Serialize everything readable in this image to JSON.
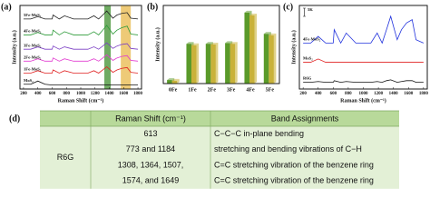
{
  "chart_data": [
    {
      "type": "line",
      "panel_label": "(a)",
      "x_label": "Raman Shift (cm⁻¹)",
      "y_label": "Intensity (a.u.)",
      "x": [
        200,
        300,
        400,
        500,
        600,
        613,
        700,
        773,
        900,
        1000,
        1100,
        1184,
        1250,
        1308,
        1364,
        1450,
        1507,
        1574,
        1649,
        1700,
        1800
      ],
      "xlim": [
        150,
        1850
      ],
      "xticks": [
        200,
        400,
        600,
        800,
        1000,
        1200,
        1400,
        1600,
        1800
      ],
      "ylim": [
        0,
        10.5
      ],
      "highlights": [
        {
          "range": [
            1330,
            1420
          ],
          "color": "#3f8f2f"
        },
        {
          "range": [
            1560,
            1700
          ],
          "color": "#e8b84a"
        }
      ],
      "series": [
        {
          "name": "5Fe-MoS₂",
          "color": "#222222",
          "values": [
            8.8,
            8.8,
            9.1,
            8.8,
            8.8,
            9.3,
            8.8,
            9.2,
            8.8,
            8.8,
            8.8,
            9.2,
            8.8,
            9.3,
            9.8,
            8.9,
            9.3,
            9.5,
            9.6,
            8.9,
            8.8
          ]
        },
        {
          "name": "4Fe-MoS₂",
          "color": "#2e9b3a",
          "values": [
            6.8,
            6.8,
            7.1,
            6.8,
            6.8,
            7.4,
            6.8,
            7.2,
            6.8,
            6.8,
            6.8,
            7.2,
            6.8,
            7.4,
            8.0,
            6.9,
            7.4,
            7.7,
            7.9,
            6.9,
            6.8
          ]
        },
        {
          "name": "3Fe-MoS₂",
          "color": "#7b3fc4",
          "values": [
            5,
            5,
            5.3,
            5,
            5,
            5.4,
            5,
            5.3,
            5,
            5,
            5,
            5.3,
            5,
            5.4,
            5.8,
            5.1,
            5.4,
            5.6,
            5.7,
            5.1,
            5
          ]
        },
        {
          "name": "2Fe-MoS₂",
          "color": "#e23bd0",
          "values": [
            3.5,
            3.5,
            3.8,
            3.5,
            3.5,
            3.9,
            3.5,
            3.8,
            3.5,
            3.5,
            3.5,
            3.8,
            3.5,
            3.9,
            4.3,
            3.6,
            3.9,
            4.1,
            4.2,
            3.6,
            3.5
          ]
        },
        {
          "name": "1Fe-MoS₂",
          "color": "#e02020",
          "values": [
            2,
            2,
            2.3,
            2,
            2,
            2.4,
            2,
            2.3,
            2,
            2,
            2,
            2.3,
            2,
            2.4,
            2.8,
            2.1,
            2.4,
            2.6,
            2.7,
            2.1,
            2
          ]
        },
        {
          "name": "MoS₂",
          "color": "#111111",
          "values": [
            0.6,
            0.6,
            1.0,
            0.6,
            0.5,
            0.5,
            0.5,
            0.5,
            0.5,
            0.5,
            0.5,
            0.5,
            0.5,
            0.5,
            0.5,
            0.5,
            0.5,
            0.5,
            0.5,
            0.5,
            0.5
          ]
        }
      ]
    },
    {
      "type": "bar",
      "panel_label": "(b)",
      "y_label": "Intensity (a.u.)",
      "categories": [
        "0Fe",
        "1Fe",
        "2Fe",
        "3Fe",
        "4Fe",
        "5Fe"
      ],
      "ylim": [
        0,
        11
      ],
      "series": [
        {
          "color": "#5a9a2a",
          "values": [
            0.5,
            5.6,
            5.6,
            5.7,
            10.0,
            7.0
          ]
        },
        {
          "color": "#c9b23a",
          "values": [
            0.4,
            5.4,
            5.5,
            5.6,
            9.6,
            6.8
          ]
        }
      ]
    },
    {
      "type": "line",
      "panel_label": "(c)",
      "x_label": "Raman Shift (cm⁻¹)",
      "y_label": "Intensity (a.u.)",
      "scale_label": "5K",
      "x": [
        200,
        300,
        400,
        500,
        600,
        613,
        700,
        773,
        900,
        1000,
        1100,
        1184,
        1250,
        1308,
        1364,
        1450,
        1507,
        1574,
        1649,
        1700,
        1800
      ],
      "xlim": [
        150,
        1850
      ],
      "xticks": [
        200,
        400,
        600,
        800,
        1000,
        1200,
        1400,
        1600,
        1800
      ],
      "ylim": [
        0,
        10
      ],
      "series": [
        {
          "name": "4Fe-MoS₂",
          "color": "#2233dd",
          "values": [
            5.5,
            5.5,
            6.3,
            5.5,
            5.5,
            7.1,
            5.5,
            6.7,
            5.5,
            5.5,
            5.5,
            6.7,
            5.5,
            7.1,
            8.7,
            5.9,
            7.1,
            7.9,
            8.3,
            5.9,
            5.5
          ]
        },
        {
          "name": "MoS₂",
          "color": "#e02020",
          "values": [
            3.2,
            3.2,
            3.6,
            3.2,
            3.2,
            3.2,
            3.2,
            3.2,
            3.2,
            3.2,
            3.2,
            3.2,
            3.2,
            3.2,
            3.2,
            3.2,
            3.2,
            3.2,
            3.2,
            3.2,
            3.2
          ]
        },
        {
          "name": "R6G",
          "color": "#111111",
          "values": [
            0.8,
            0.8,
            0.9,
            0.8,
            0.8,
            1.0,
            0.8,
            0.9,
            0.8,
            0.8,
            0.8,
            0.9,
            0.8,
            1.0,
            1.1,
            0.8,
            0.9,
            1.0,
            1.0,
            0.8,
            0.8
          ]
        }
      ]
    }
  ],
  "table": {
    "label": "(d)",
    "header": [
      "Raman Shift (cm⁻¹)",
      "Band Assignments"
    ],
    "row_label": "R6G",
    "rows": [
      [
        "613",
        "C−C−C in-plane bending"
      ],
      [
        "773 and 1184",
        "stretching and bending vibrations of C−H"
      ],
      [
        "1308, 1364, 1507,",
        "C=C stretching vibration of the benzene ring"
      ],
      [
        "1574, and 1649",
        "C=C stretching vibration of the benzene ring"
      ]
    ]
  }
}
